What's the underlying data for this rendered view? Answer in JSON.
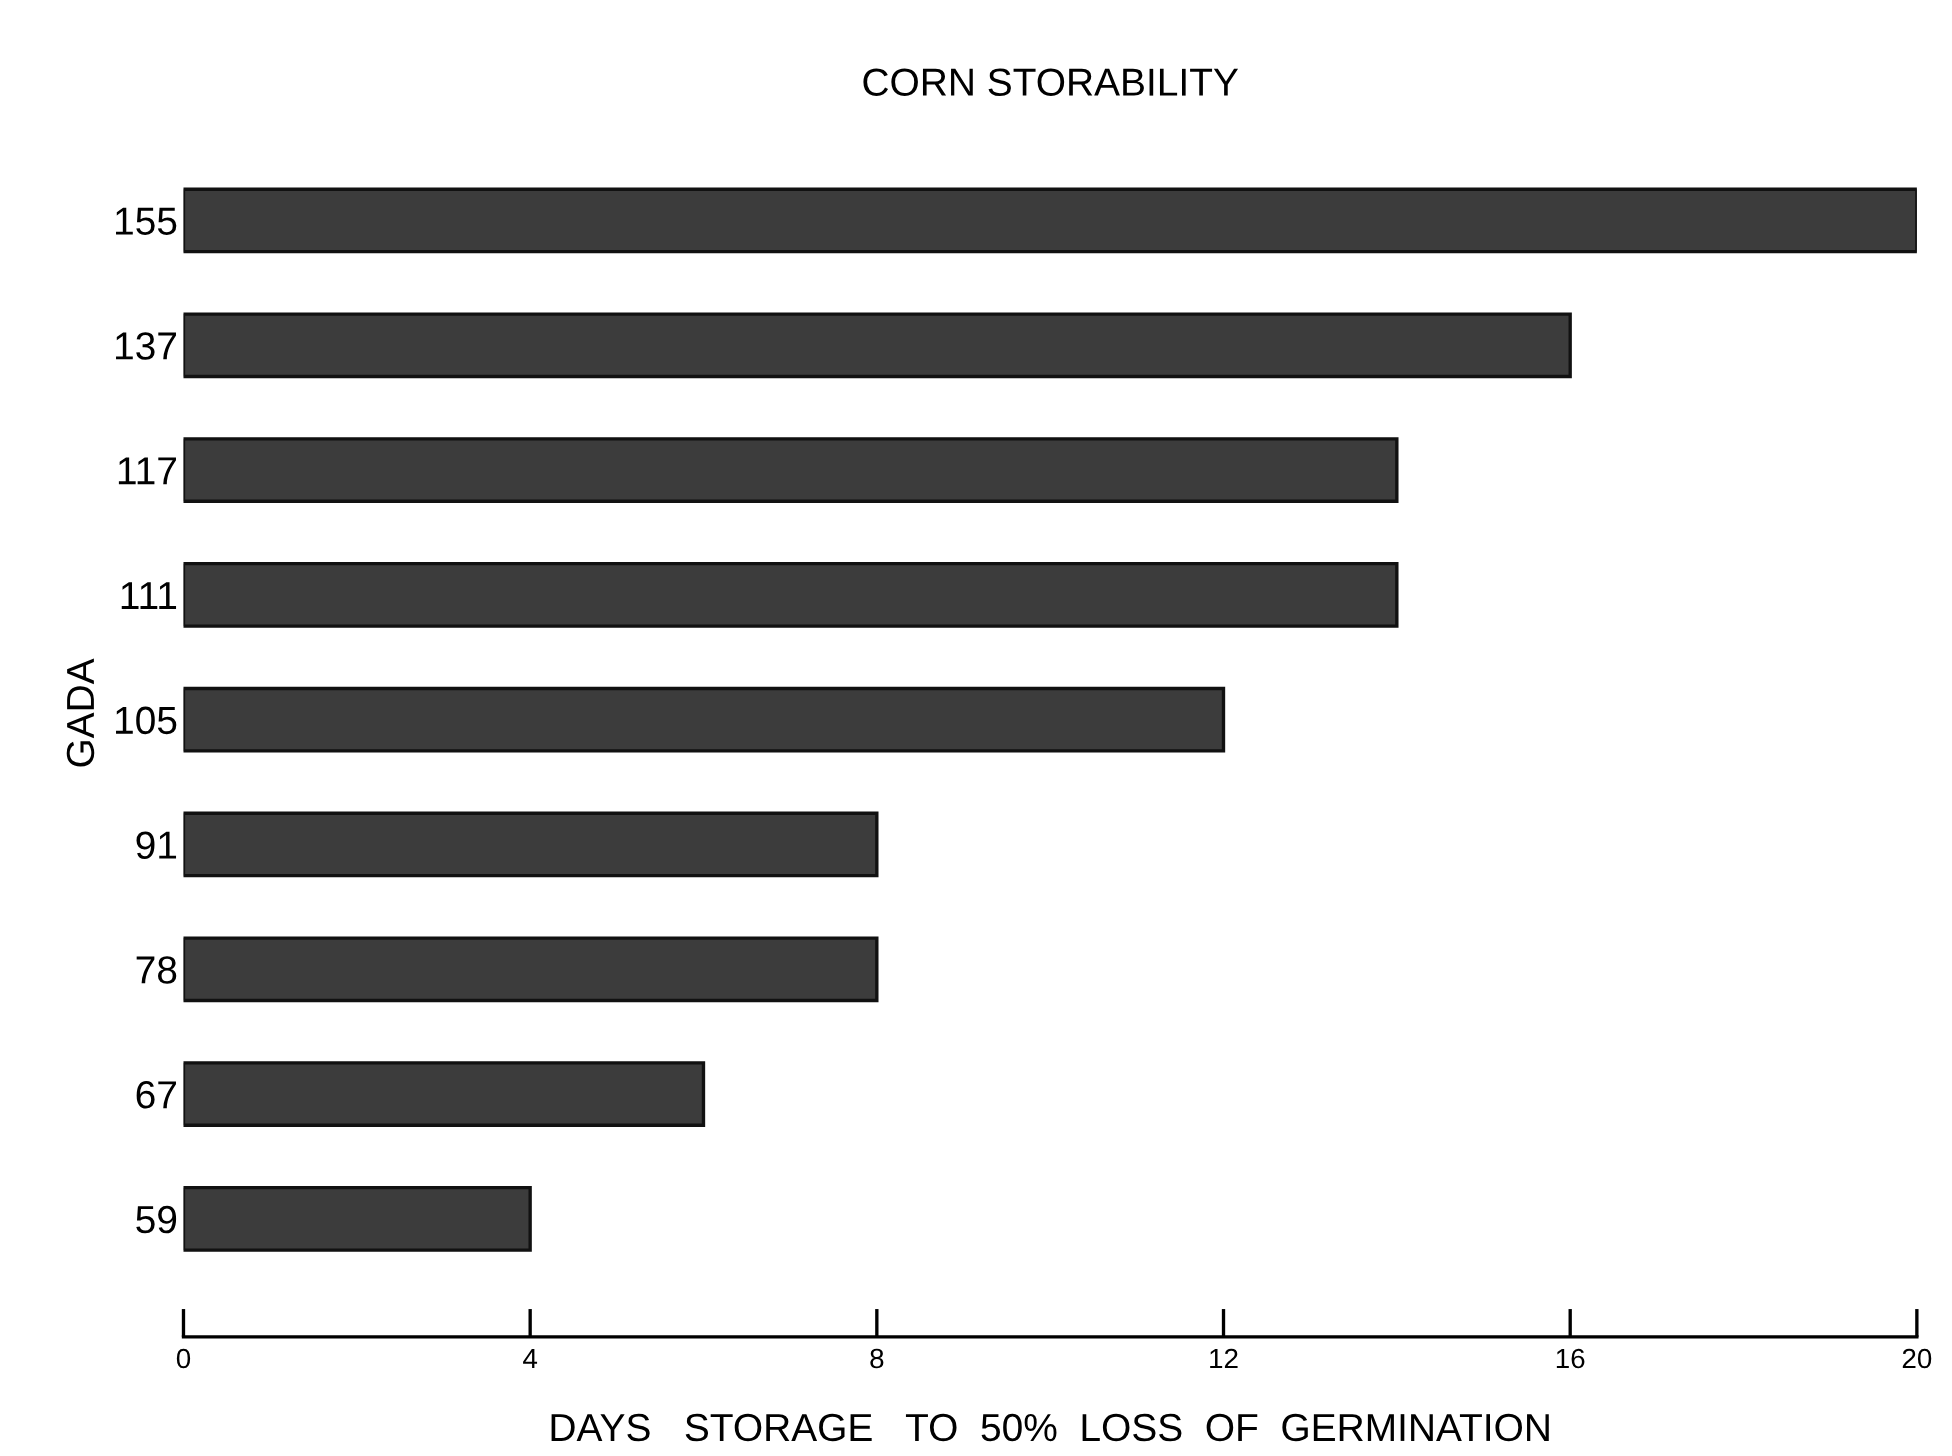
{
  "chart_data": {
    "type": "bar",
    "orientation": "horizontal",
    "title": "CORN STORABILITY",
    "xlabel": "DAYS   STORAGE   TO  50%  LOSS  OF  GERMINATION",
    "ylabel": "GADA",
    "categories": [
      "155",
      "137",
      "117",
      "111",
      "105",
      "91",
      "78",
      "67",
      "59"
    ],
    "values": [
      20,
      16,
      14,
      14,
      12,
      8,
      8,
      6,
      4
    ],
    "color": "#3c3c3c",
    "xlim": [
      0,
      20
    ],
    "xticks": [
      0,
      4,
      8,
      12,
      16,
      20
    ],
    "grid": false
  }
}
